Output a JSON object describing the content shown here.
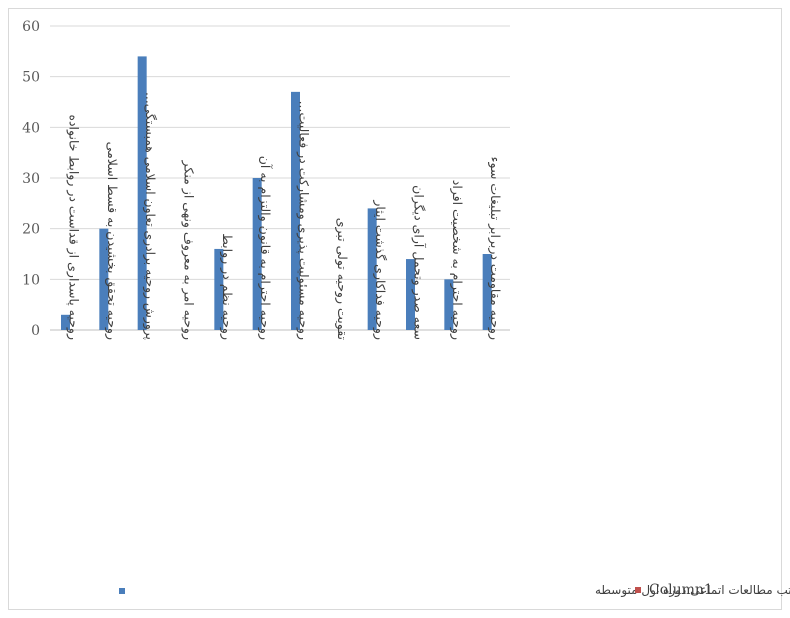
{
  "chart_data": {
    "type": "bar",
    "title": "",
    "xlabel": "",
    "ylabel": "",
    "ylim": [
      0,
      60
    ],
    "yticks": [
      0,
      10,
      20,
      30,
      40,
      50,
      60
    ],
    "grid": true,
    "legend_position": "bottom",
    "categories": [
      "روحیه پاسداری از قداست در روابط خانواده",
      "روحیه تحقق بخشیدن به قسط اسلامی",
      "پرورش روحیه برادری تعاون اسلامی همبستگی...",
      "روحیه امر به معروف ونهی از منکر",
      "روحیه نظم در روابط",
      "روحیه احترام به قانون والتزام به آن",
      "روحیه مسئولیت پذیری ومشارکت در فعالیت...",
      "تقویت روحیه تولی تبری",
      "روحیه فداکاری گذشت ایثار",
      "سعه صدر وتحمل آرای دیگران",
      "روحیه احترام به شخصیت افراد",
      "روحیه مقاومت دربرابر تبلیغات سوء"
    ],
    "series": [
      {
        "name": "نمودار  روانی اهداف تربیت  اتماعی در کتب مطالعات  اتماعی دوره اول متوسطه",
        "color": "#4a7ebb",
        "values": [
          3,
          20,
          54,
          0,
          16,
          30,
          47,
          0,
          24,
          14,
          10,
          15
        ]
      },
      {
        "name": "Column1",
        "color": "#c0504d",
        "values": [
          0,
          0,
          0,
          0,
          0,
          0,
          0,
          0,
          0,
          0,
          0,
          0
        ]
      }
    ]
  }
}
